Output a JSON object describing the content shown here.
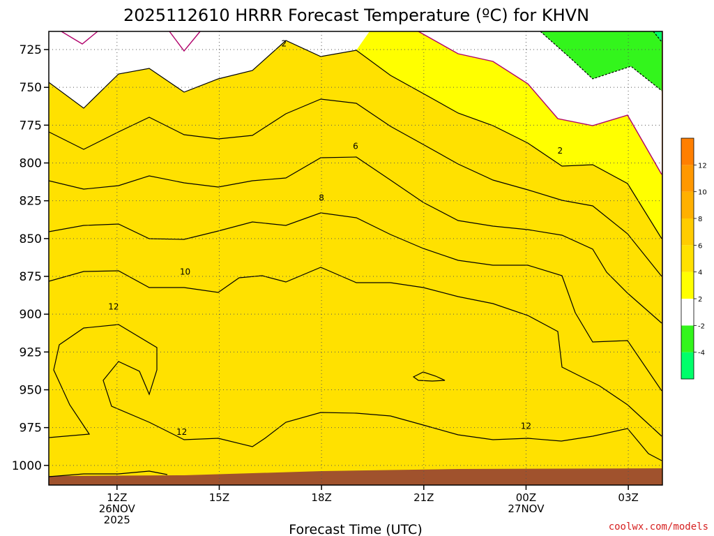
{
  "chart_data": {
    "type": "heatmap",
    "title": "2025112610 HRRR Forecast Temperature (ºC) for KHVN",
    "xlabel": "Forecast Time (UTC)",
    "ylabel": "",
    "x_ticks": [
      {
        "hour": 12,
        "label": "12Z",
        "date": "26NOV",
        "year": "2025"
      },
      {
        "hour": 15,
        "label": "15Z"
      },
      {
        "hour": 18,
        "label": "18Z"
      },
      {
        "hour": 21,
        "label": "21Z"
      },
      {
        "hour": 24,
        "label": "00Z",
        "date": "27NOV"
      },
      {
        "hour": 27,
        "label": "03Z"
      }
    ],
    "xlim": [
      10.0,
      28.0
    ],
    "y_ticks": [
      725,
      750,
      775,
      800,
      825,
      850,
      875,
      900,
      925,
      950,
      975,
      1000
    ],
    "ylim": [
      713,
      1013
    ],
    "colorbar": {
      "levels": [
        -6,
        -4,
        -2,
        2,
        4,
        6,
        8,
        10,
        12,
        14
      ],
      "tick_labels": [
        "-4",
        "-2",
        "2",
        "4",
        "6",
        "8",
        "10",
        "12"
      ],
      "tick_values": [
        -4,
        -2,
        2,
        4,
        6,
        8,
        10,
        12
      ],
      "colors": [
        "#00ff6a",
        "#33f51c",
        "#ffffff",
        "#ffff00",
        "#ffe100",
        "#ffcc00",
        "#ffb000",
        "#ff9800",
        "#ff7f00",
        "#ff6600"
      ]
    },
    "contour_labels": [
      {
        "label": "2",
        "hour": 16.9,
        "pressure": 721
      },
      {
        "label": "6",
        "hour": 19.0,
        "pressure": 789
      },
      {
        "label": "8",
        "hour": 18.0,
        "pressure": 823
      },
      {
        "label": "10",
        "hour": 14.0,
        "pressure": 872
      },
      {
        "label": "12",
        "hour": 11.9,
        "pressure": 895
      },
      {
        "label": "12",
        "hour": 13.9,
        "pressure": 978
      },
      {
        "label": "12",
        "hour": 24.0,
        "pressure": 974
      },
      {
        "label": "2",
        "hour": 25.0,
        "pressure": 792
      }
    ],
    "surface_color": "#a0522d",
    "credit": "coolwx.com/models"
  }
}
